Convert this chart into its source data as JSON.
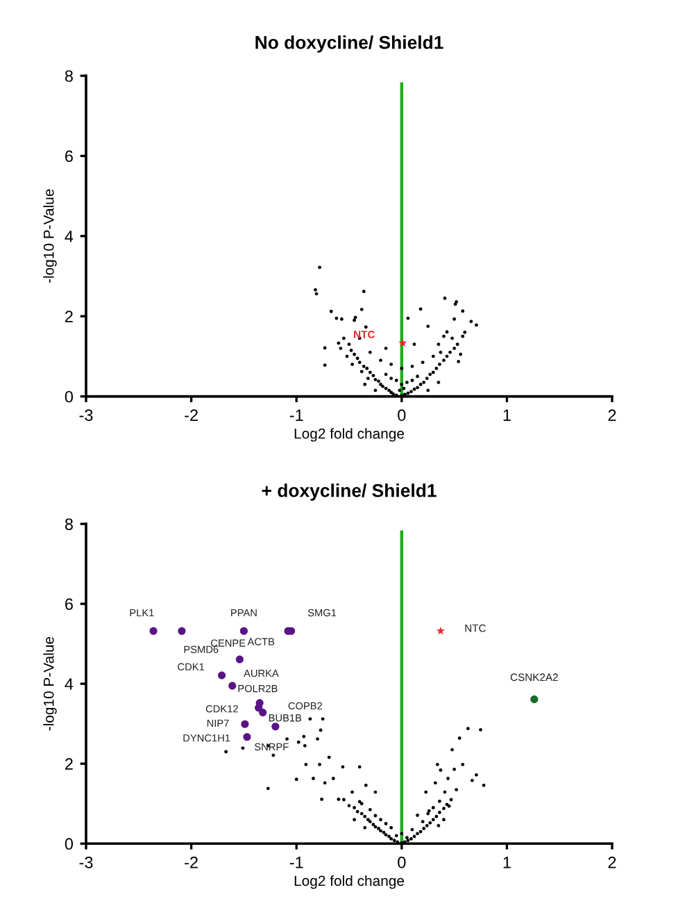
{
  "chart_data": [
    {
      "type": "scatter",
      "title": "No doxycline/ Shield1",
      "xlabel": "Log2 fold change",
      "ylabel": "-log10 P-Value",
      "xlim": [
        -3,
        2
      ],
      "xticks": [
        -3,
        -2,
        -1,
        0,
        1,
        2
      ],
      "ylim": [
        0,
        8
      ],
      "yticks": [
        0,
        2,
        4,
        6,
        8
      ],
      "grid": false,
      "legend": false,
      "series": [
        {
          "type": "scatter",
          "color": "#000000",
          "marker": "circle",
          "x": [
            -0.78,
            -0.82,
            -0.81,
            -0.36,
            -0.67,
            -0.38,
            -0.62,
            -0.57,
            -0.45,
            -0.44,
            -0.73,
            -0.73,
            -0.6,
            -0.34,
            0.18,
            0.41,
            0.52,
            0.51,
            0.66,
            0.71,
            0.5,
            0.58,
            0.06,
            0.25,
            0.43,
            0.6,
            0.54,
            0.37,
            -0.55,
            -0.5,
            -0.58,
            -0.48,
            -0.45,
            -0.52,
            -0.42,
            -0.4,
            -0.47,
            -0.36,
            -0.33,
            -0.38,
            -0.3,
            -0.27,
            -0.32,
            -0.25,
            -0.22,
            -0.2,
            -0.18,
            -0.15,
            -0.12,
            -0.1,
            -0.08,
            -0.05,
            0,
            0.03,
            0.06,
            0.09,
            0.12,
            0.15,
            0.18,
            0.21,
            0.24,
            0.27,
            0.3,
            0.33,
            0.36,
            0.4,
            0.43,
            0.46,
            0.5,
            0.53,
            0.48,
            0.56,
            0.58,
            0.3,
            -0.2,
            -0.1,
            0,
            0.1,
            0.2,
            -0.3,
            -0.05,
            0.05,
            -0.15,
            0.15,
            0,
            -0.02,
            0.02,
            0.1,
            -0.1,
            -0.25,
            0.25,
            -0.35,
            0.35,
            -0.15,
            0.12,
            0.35,
            -0.4,
            0.4
          ],
          "values": [
            3.22,
            2.66,
            2.56,
            2.62,
            2.12,
            2.17,
            1.95,
            1.93,
            1.9,
            1.97,
            1.21,
            0.78,
            1.33,
            1.73,
            2.18,
            2.45,
            2.36,
            2.3,
            1.87,
            1.78,
            1.93,
            2.13,
            1.95,
            1.75,
            1.61,
            1.6,
            0.87,
            1.1,
            1.45,
            1.3,
            1.2,
            1.15,
            1.05,
            1.0,
            0.95,
            0.85,
            0.8,
            0.75,
            0.7,
            0.62,
            0.6,
            0.52,
            0.45,
            0.42,
            0.38,
            0.3,
            0.25,
            0.2,
            0.15,
            0.1,
            0.06,
            0.03,
            0.02,
            0.05,
            0.08,
            0.12,
            0.18,
            0.22,
            0.3,
            0.35,
            0.45,
            0.55,
            0.6,
            0.7,
            0.8,
            0.9,
            1.0,
            1.1,
            1.2,
            1.3,
            1.45,
            1.05,
            1.5,
            1.0,
            0.9,
            0.8,
            0.7,
            0.75,
            0.85,
            1.1,
            0.4,
            0.35,
            0.55,
            0.5,
            0.3,
            0.15,
            0.2,
            0.4,
            0.45,
            0.15,
            0.15,
            0.3,
            0.35,
            1.2,
            1.3,
            1.3,
            1.45,
            1.5
          ]
        },
        {
          "type": "line",
          "color": "#1fb01f",
          "x": [
            0,
            0
          ],
          "values": [
            0,
            7.8
          ]
        },
        {
          "type": "scatter",
          "name": "NTC",
          "color": "#e8262b",
          "marker": "star",
          "x": [
            0.01
          ],
          "values": [
            1.33
          ]
        }
      ]
    },
    {
      "type": "scatter",
      "title": "+ doxycline/ Shield1",
      "xlabel": "Log2 fold change",
      "ylabel": "-log10 P-Value",
      "xlim": [
        -3,
        2
      ],
      "xticks": [
        -3,
        -2,
        -1,
        0,
        1,
        2
      ],
      "ylim": [
        0,
        8
      ],
      "yticks": [
        0,
        2,
        4,
        6,
        8
      ],
      "grid": false,
      "legend": false,
      "series": [
        {
          "type": "scatter",
          "color": "#000000",
          "marker": "circle",
          "x": [
            -0.87,
            -0.75,
            -0.77,
            -0.93,
            -0.8,
            -0.98,
            -0.92,
            -0.91,
            -1.0,
            -1.27,
            -1.22,
            -1.27,
            -1.51,
            -1.67,
            -1.09,
            -0.69,
            -0.78,
            -0.84,
            -0.65,
            -0.56,
            -0.4,
            -0.73,
            -0.76,
            -0.6,
            -0.47,
            -0.34,
            -0.25,
            -0.38,
            0.63,
            0.75,
            0.55,
            0.48,
            0.34,
            0.37,
            0.5,
            0.58,
            0.71,
            0.78,
            0.67,
            0.44,
            0.32,
            0.23,
            0.41,
            0.52,
            0.36,
            0.26,
            0.15,
            0.45,
            -0.5,
            -0.45,
            -0.42,
            -0.38,
            -0.35,
            -0.32,
            -0.3,
            -0.27,
            -0.25,
            -0.22,
            -0.2,
            -0.17,
            -0.15,
            -0.12,
            -0.1,
            -0.07,
            -0.04,
            0,
            0.03,
            0.06,
            0.09,
            0.12,
            0.15,
            0.18,
            0.21,
            0.24,
            0.27,
            0.3,
            0.33,
            0.36,
            0.4,
            0.43,
            0.47,
            -0.55,
            -0.4,
            -0.3,
            -0.2,
            -0.1,
            0,
            0.1,
            0.2,
            0.3,
            -0.15,
            0.05,
            -0.05,
            -0.35,
            0.35,
            -0.25,
            0.25,
            -0.45,
            0.4
          ],
          "values": [
            3.12,
            3.12,
            2.84,
            2.68,
            2.62,
            2.54,
            2.45,
            1.98,
            1.61,
            2.45,
            2.21,
            1.38,
            2.39,
            2.3,
            2.62,
            2.16,
            1.98,
            1.63,
            1.63,
            1.92,
            1.92,
            1.52,
            1.11,
            1.11,
            1.29,
            1.46,
            1.29,
            1.0,
            2.88,
            2.85,
            2.64,
            2.35,
            1.98,
            1.84,
            1.86,
            1.98,
            1.72,
            1.46,
            1.58,
            1.63,
            1.52,
            1.29,
            1.29,
            1.35,
            1.06,
            0.82,
            0.71,
            0.94,
            0.95,
            0.9,
            0.8,
            0.75,
            0.68,
            0.6,
            0.55,
            0.48,
            0.42,
            0.38,
            0.32,
            0.28,
            0.22,
            0.18,
            0.12,
            0.08,
            0.04,
            0.02,
            0.04,
            0.08,
            0.12,
            0.18,
            0.25,
            0.3,
            0.38,
            0.45,
            0.52,
            0.6,
            0.68,
            0.78,
            0.88,
            0.98,
            1.1,
            1.1,
            1.05,
            0.85,
            0.6,
            0.4,
            0.25,
            0.35,
            0.55,
            0.9,
            0.5,
            0.15,
            0.2,
            0.4,
            0.45,
            0.7,
            0.75,
            0.6,
            0.6
          ]
        },
        {
          "type": "line",
          "color": "#1fb01f",
          "x": [
            0,
            0
          ],
          "values": [
            0,
            7.8
          ]
        },
        {
          "type": "scatter",
          "color": "#5a1486",
          "marker": "circle",
          "x": [
            -2.36,
            -2.09,
            -1.5,
            -1.05,
            -1.08,
            -1.54,
            -1.71,
            -1.61,
            -1.35,
            -1.36,
            -1.32,
            -1.2,
            -1.49,
            -1.47
          ],
          "values": [
            5.32,
            5.32,
            5.32,
            5.32,
            5.32,
            4.61,
            4.21,
            3.95,
            3.52,
            3.4,
            3.28,
            2.93,
            2.99,
            2.67
          ]
        },
        {
          "type": "scatter",
          "name": "NTC",
          "color": "#e8262b",
          "marker": "star",
          "x": [
            0.37
          ],
          "values": [
            5.32
          ]
        },
        {
          "type": "scatter",
          "name": "CSNK2A2",
          "color": "#1d6b25",
          "marker": "circle",
          "x": [
            1.26
          ],
          "values": [
            3.61
          ]
        }
      ],
      "annotations": [
        {
          "text": "PLK1",
          "x": -2.36,
          "y": 5.32
        },
        {
          "text": "PSMD6",
          "x": -2.09,
          "y": 5.32
        },
        {
          "text": "PPAN",
          "x": -1.5,
          "y": 5.32
        },
        {
          "text": "SMG1",
          "x": -1.05,
          "y": 5.32
        },
        {
          "text": "ACTB",
          "x": -1.08,
          "y": 5.32
        },
        {
          "text": "CENPE",
          "x": -1.54,
          "y": 4.61
        },
        {
          "text": "CDK1",
          "x": -1.71,
          "y": 4.21
        },
        {
          "text": "AURKA",
          "x": -1.61,
          "y": 3.95
        },
        {
          "text": "POLR2B",
          "x": -1.35,
          "y": 3.52
        },
        {
          "text": "CDK12",
          "x": -1.36,
          "y": 3.4
        },
        {
          "text": "COPB2",
          "x": -1.32,
          "y": 3.28
        },
        {
          "text": "BUB1B",
          "x": -1.2,
          "y": 2.93
        },
        {
          "text": "NIP7",
          "x": -1.49,
          "y": 2.99
        },
        {
          "text": "DYNC1H1",
          "x": -1.47,
          "y": 2.67
        },
        {
          "text": "SNRPF",
          "x": -1.2,
          "y": 2.93
        }
      ]
    }
  ]
}
